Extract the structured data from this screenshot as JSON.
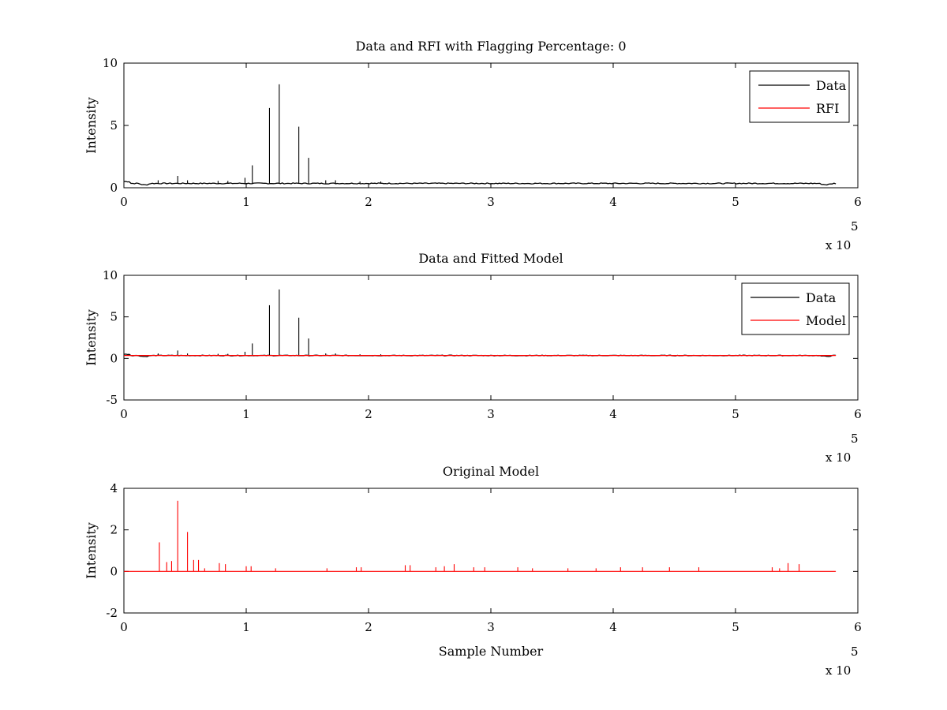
{
  "chart_data": [
    {
      "type": "line",
      "title": "Data and RFI with Flagging Percentage: 0",
      "xlabel": "",
      "ylabel": "Intensity",
      "xlim": [
        0,
        6
      ],
      "ylim": [
        0,
        10
      ],
      "x_ticks": [
        "0",
        "1",
        "2",
        "3",
        "4",
        "5",
        "6"
      ],
      "y_ticks": [
        "0",
        "5",
        "10"
      ],
      "x_exponent": "x 10",
      "x_exponent_power": "5",
      "legend": {
        "placement": "top-right",
        "entries": [
          {
            "label": "Data",
            "color": "#000000"
          },
          {
            "label": "RFI",
            "color": "#ff0000"
          }
        ]
      },
      "series": [
        {
          "name": "Data",
          "color": "#000000",
          "baseline": 0.35,
          "spikes": [
            [
              0.28,
              0.6
            ],
            [
              0.44,
              0.95
            ],
            [
              0.52,
              0.6
            ],
            [
              0.77,
              0.55
            ],
            [
              0.85,
              0.55
            ],
            [
              0.99,
              0.8
            ],
            [
              1.05,
              1.8
            ],
            [
              1.19,
              6.4
            ],
            [
              1.27,
              8.3
            ],
            [
              1.43,
              4.9
            ],
            [
              1.51,
              2.4
            ],
            [
              1.65,
              0.6
            ],
            [
              1.73,
              0.6
            ],
            [
              1.93,
              0.5
            ],
            [
              2.1,
              0.5
            ]
          ]
        },
        {
          "name": "RFI",
          "color": "#ff0000",
          "spikes": []
        }
      ]
    },
    {
      "type": "line",
      "title": "Data and Fitted Model",
      "xlabel": "",
      "ylabel": "Intensity",
      "xlim": [
        0,
        6
      ],
      "ylim": [
        -5,
        10
      ],
      "x_ticks": [
        "0",
        "1",
        "2",
        "3",
        "4",
        "5",
        "6"
      ],
      "y_ticks": [
        "-5",
        "0",
        "5",
        "10"
      ],
      "x_exponent": "x 10",
      "x_exponent_power": "5",
      "legend": {
        "placement": "top-right",
        "entries": [
          {
            "label": "Data",
            "color": "#000000"
          },
          {
            "label": "Model",
            "color": "#ff0000"
          }
        ]
      },
      "series": [
        {
          "name": "Data",
          "color": "#000000",
          "baseline": 0.35,
          "spikes": [
            [
              0.28,
              0.6
            ],
            [
              0.44,
              0.95
            ],
            [
              0.52,
              0.6
            ],
            [
              0.77,
              0.55
            ],
            [
              0.85,
              0.55
            ],
            [
              0.99,
              0.8
            ],
            [
              1.05,
              1.8
            ],
            [
              1.19,
              6.4
            ],
            [
              1.27,
              8.3
            ],
            [
              1.43,
              4.9
            ],
            [
              1.51,
              2.4
            ],
            [
              1.65,
              0.6
            ],
            [
              1.73,
              0.6
            ],
            [
              1.93,
              0.5
            ],
            [
              2.1,
              0.5
            ]
          ]
        },
        {
          "name": "Model",
          "color": "#ff0000",
          "baseline": 0.35,
          "x_range": [
            0,
            5.82
          ]
        }
      ]
    },
    {
      "type": "line",
      "title": "Original Model",
      "xlabel": "Sample Number",
      "ylabel": "Intensity",
      "xlim": [
        0,
        6
      ],
      "ylim": [
        -2,
        4
      ],
      "x_ticks": [
        "0",
        "1",
        "2",
        "3",
        "4",
        "5",
        "6"
      ],
      "y_ticks": [
        "-2",
        "0",
        "2",
        "4"
      ],
      "x_exponent": "x 10",
      "x_exponent_power": "5",
      "series": [
        {
          "name": "Original Model",
          "color": "#ff0000",
          "baseline": 0.0,
          "x_range": [
            0,
            5.82
          ],
          "spikes": [
            [
              0.29,
              1.4
            ],
            [
              0.35,
              0.45
            ],
            [
              0.39,
              0.5
            ],
            [
              0.44,
              3.4
            ],
            [
              0.52,
              1.9
            ],
            [
              0.57,
              0.55
            ],
            [
              0.61,
              0.55
            ],
            [
              0.66,
              0.15
            ],
            [
              0.78,
              0.4
            ],
            [
              0.83,
              0.35
            ],
            [
              1.0,
              0.25
            ],
            [
              1.04,
              0.25
            ],
            [
              1.24,
              0.15
            ],
            [
              1.66,
              0.15
            ],
            [
              1.9,
              0.2
            ],
            [
              1.94,
              0.2
            ],
            [
              2.3,
              0.3
            ],
            [
              2.34,
              0.3
            ],
            [
              2.55,
              0.2
            ],
            [
              2.62,
              0.25
            ],
            [
              2.7,
              0.35
            ],
            [
              2.86,
              0.2
            ],
            [
              2.95,
              0.2
            ],
            [
              3.22,
              0.2
            ],
            [
              3.34,
              0.15
            ],
            [
              3.63,
              0.15
            ],
            [
              3.86,
              0.15
            ],
            [
              4.06,
              0.2
            ],
            [
              4.24,
              0.2
            ],
            [
              4.46,
              0.2
            ],
            [
              4.7,
              0.2
            ],
            [
              5.3,
              0.2
            ],
            [
              5.36,
              0.15
            ],
            [
              5.43,
              0.4
            ],
            [
              5.52,
              0.35
            ]
          ]
        }
      ]
    }
  ]
}
